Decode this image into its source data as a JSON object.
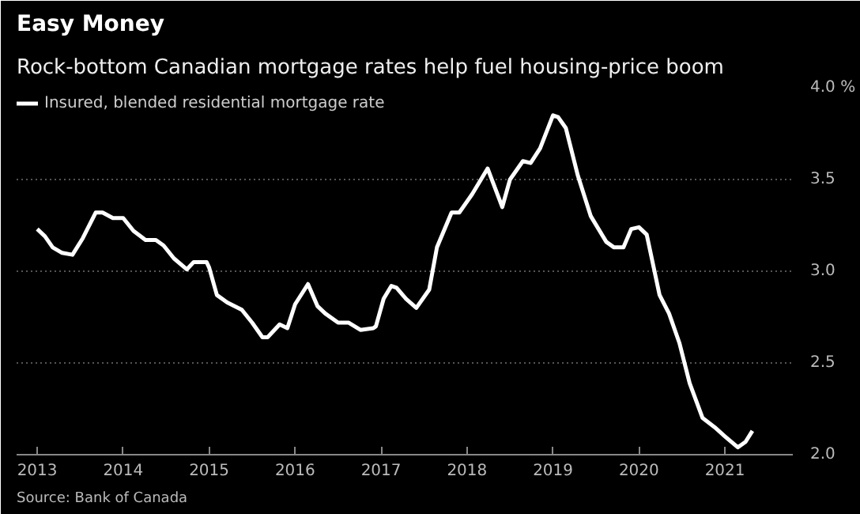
{
  "chart_data": {
    "type": "line",
    "title": "Easy Money",
    "subtitle": "Rock-bottom Canadian mortgage rates help fuel housing-price boom",
    "annotations": [
      "Source: Bank of Canada"
    ],
    "series": [
      {
        "name": "Insured, blended residential mortgage rate",
        "color": "#ffffff",
        "x": [
          2013.0,
          2013.09,
          2013.18,
          2013.29,
          2013.41,
          2013.53,
          2013.68,
          2013.76,
          2013.88,
          2014.0,
          2014.12,
          2014.26,
          2014.38,
          2014.47,
          2014.59,
          2014.74,
          2014.82,
          2014.97,
          2015.0,
          2015.09,
          2015.21,
          2015.38,
          2015.5,
          2015.62,
          2015.68,
          2015.82,
          2015.91,
          2016.0,
          2016.15,
          2016.26,
          2016.35,
          2016.5,
          2016.62,
          2016.76,
          2016.91,
          2016.94,
          2017.03,
          2017.12,
          2017.18,
          2017.29,
          2017.41,
          2017.56,
          2017.65,
          2017.82,
          2017.91,
          2018.06,
          2018.24,
          2018.41,
          2018.5,
          2018.65,
          2018.74,
          2018.85,
          2019.0,
          2019.06,
          2019.15,
          2019.29,
          2019.44,
          2019.62,
          2019.71,
          2019.82,
          2019.91,
          2020.0,
          2020.09,
          2020.24,
          2020.35,
          2020.47,
          2020.59,
          2020.74,
          2020.88,
          2021.0,
          2021.15,
          2021.24,
          2021.32
        ],
        "values": [
          3.23,
          3.19,
          3.13,
          3.1,
          3.09,
          3.18,
          3.32,
          3.32,
          3.29,
          3.29,
          3.22,
          3.17,
          3.17,
          3.14,
          3.07,
          3.01,
          3.05,
          3.05,
          3.02,
          2.87,
          2.83,
          2.79,
          2.72,
          2.64,
          2.64,
          2.71,
          2.69,
          2.82,
          2.93,
          2.81,
          2.77,
          2.72,
          2.72,
          2.68,
          2.69,
          2.7,
          2.85,
          2.92,
          2.91,
          2.85,
          2.8,
          2.9,
          3.13,
          3.32,
          3.32,
          3.42,
          3.56,
          3.35,
          3.5,
          3.6,
          3.59,
          3.67,
          3.85,
          3.84,
          3.78,
          3.52,
          3.3,
          3.16,
          3.13,
          3.13,
          3.23,
          3.24,
          3.2,
          2.87,
          2.77,
          2.61,
          2.39,
          2.2,
          2.15,
          2.1,
          2.04,
          2.07,
          2.13
        ]
      }
    ],
    "xlim": [
      2012.76,
      2021.79
    ],
    "xticks": [
      2013,
      2014,
      2015,
      2016,
      2017,
      2018,
      2019,
      2020,
      2021
    ],
    "ylim": [
      2.0,
      4.0
    ],
    "yticks": [
      {
        "value": 2.0,
        "label": "2.0"
      },
      {
        "value": 2.5,
        "label": "2.5"
      },
      {
        "value": 3.0,
        "label": "3.0"
      },
      {
        "value": 3.5,
        "label": "3.5"
      },
      {
        "value": 4.0,
        "label": "4.0 %"
      }
    ],
    "grid": "y",
    "legend": "top left",
    "marker": "none",
    "line_style": "solid"
  }
}
